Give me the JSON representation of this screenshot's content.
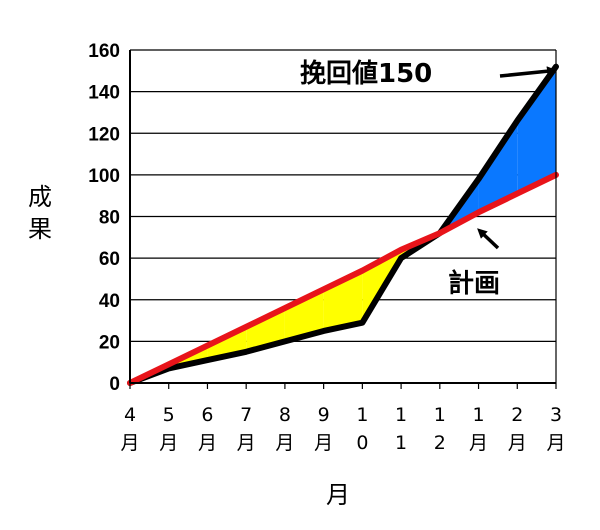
{
  "chart_data": {
    "type": "line",
    "title": "",
    "ylabel": "成果",
    "xlabel": "月",
    "ylim": [
      0,
      160
    ],
    "yticks": [
      0,
      20,
      40,
      60,
      80,
      100,
      120,
      140,
      160
    ],
    "grid": "horizontal",
    "categories": [
      "4月",
      "5月",
      "6月",
      "7月",
      "8月",
      "9月",
      "10",
      "11",
      "12",
      "1月",
      "2月",
      "3月"
    ],
    "series": [
      {
        "values": [
          0,
          7,
          11,
          15,
          20,
          25,
          29,
          60,
          72,
          98,
          126,
          152
        ],
        "color": "#000000"
      },
      {
        "values": [
          0,
          9,
          18,
          27,
          36,
          45,
          54,
          64,
          72,
          82,
          91,
          100
        ],
        "color": "#e8141a"
      }
    ],
    "fill_below_plan_color": "#ffff00",
    "fill_above_plan_color": "#0a78ff",
    "annotations": [
      {
        "text": "挽回値150",
        "target_index": 11,
        "target_value": 152
      },
      {
        "text": "計画",
        "target_index": 9,
        "target_value": 82
      }
    ]
  }
}
